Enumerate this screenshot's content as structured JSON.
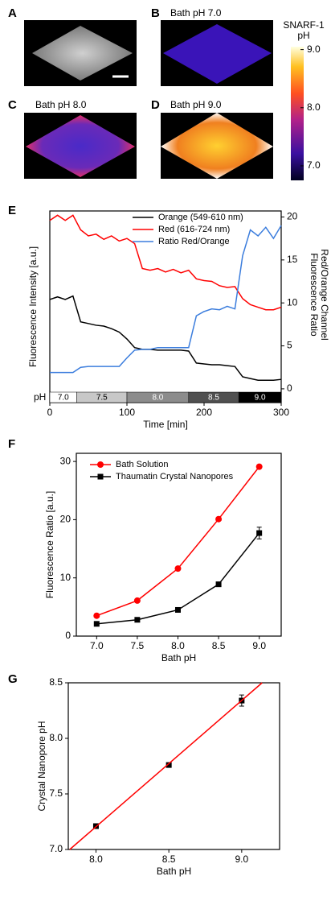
{
  "panel_labels": [
    "A",
    "B",
    "C",
    "D",
    "E",
    "F",
    "G"
  ],
  "image_titles": [
    "Bath pH 7.0",
    "Bath pH 8.0",
    "Bath pH 9.0"
  ],
  "colorbar": {
    "title": [
      "SNARF-1",
      "pH"
    ],
    "ylim": [
      6.75,
      9.05
    ],
    "ticks": [
      {
        "value": 7,
        "label": "7.0"
      },
      {
        "value": 8,
        "label": "8.0"
      },
      {
        "value": 9,
        "label": "9.0"
      }
    ]
  },
  "chart_data": [
    {
      "type": "line",
      "xlabel": "Time [min]",
      "ylabel": "Fluorescence Intensity [a.u.]",
      "y2label": [
        "Fluorescence Ratio",
        "Red/Orange Channel"
      ],
      "x": [
        0,
        10,
        20,
        30,
        40,
        50,
        60,
        70,
        80,
        90,
        100,
        110,
        120,
        130,
        140,
        150,
        160,
        170,
        180,
        190,
        200,
        210,
        220,
        230,
        240,
        250,
        260,
        270,
        280,
        290,
        300
      ],
      "xlim": [
        0,
        300
      ],
      "xticks": [
        0,
        100,
        200,
        300
      ],
      "ylim": [
        -1.6,
        20.7
      ],
      "y2lim": [
        -1.6,
        20.7
      ],
      "y2ticks": [
        0,
        5,
        10,
        15,
        20
      ],
      "series": [
        {
          "name": "Orange (549-610 nm)",
          "color": "#000000",
          "values": [
            10.4,
            10.7,
            10.4,
            10.8,
            7.8,
            7.6,
            7.4,
            7.3,
            7.0,
            6.6,
            5.8,
            4.8,
            4.6,
            4.6,
            4.5,
            4.5,
            4.5,
            4.5,
            4.4,
            3.0,
            2.9,
            2.8,
            2.8,
            2.7,
            2.6,
            1.4,
            1.2,
            1.0,
            1.0,
            1.0,
            1.1
          ]
        },
        {
          "name": "Red (616-724 nm)",
          "color": "#ff0000",
          "values": [
            19.6,
            20.2,
            19.6,
            20.2,
            18.5,
            17.8,
            18.0,
            17.4,
            17.8,
            17.2,
            17.5,
            16.9,
            14.0,
            13.8,
            14.0,
            13.6,
            13.9,
            13.5,
            13.8,
            12.8,
            12.6,
            12.5,
            12.0,
            11.8,
            11.9,
            10.5,
            9.8,
            9.5,
            9.2,
            9.2,
            9.5
          ]
        },
        {
          "name": "Ratio Red/Orange",
          "color": "#3b7ddd",
          "axis": "y2",
          "values": [
            1.9,
            1.9,
            1.9,
            1.9,
            2.5,
            2.6,
            2.6,
            2.6,
            2.6,
            2.6,
            3.6,
            4.5,
            4.6,
            4.6,
            4.8,
            4.8,
            4.8,
            4.8,
            4.8,
            8.5,
            9.0,
            9.3,
            9.2,
            9.6,
            9.3,
            15.5,
            18.5,
            17.8,
            18.8,
            17.5,
            19.0
          ]
        }
      ],
      "ph_bar": {
        "label": "pH",
        "bounds": [
          0,
          35,
          100,
          180,
          245,
          300
        ],
        "labels": [
          "7.0",
          "7.5",
          "8.0",
          "8.5",
          "9.0"
        ],
        "colors": [
          "#ffffff",
          "#c8c8c8",
          "#8c8c8c",
          "#505050",
          "#000000"
        ]
      }
    },
    {
      "type": "line",
      "xlabel": "Bath pH",
      "ylabel": "Fluorescence Ratio [a.u.]",
      "x": [
        7.0,
        7.5,
        8.0,
        8.5,
        9.0
      ],
      "xlim": [
        6.75,
        9.27
      ],
      "xticks": [
        {
          "value": 7,
          "label": "7.0"
        },
        {
          "value": 7.5,
          "label": "7.5"
        },
        {
          "value": 8,
          "label": "8.0"
        },
        {
          "value": 8.5,
          "label": "8.5"
        },
        {
          "value": 9,
          "label": "9.0"
        }
      ],
      "ylim": [
        0,
        31.4
      ],
      "yticks": [
        0,
        10,
        20,
        30
      ],
      "series": [
        {
          "name": "Bath Solution",
          "color": "#ff0000",
          "marker": "circle",
          "values": [
            3.5,
            6.1,
            11.6,
            20.1,
            29.1
          ]
        },
        {
          "name": "Thaumatin Crystal Nanopores",
          "color": "#000000",
          "marker": "square",
          "values": [
            2.1,
            2.8,
            4.5,
            8.9,
            17.7
          ],
          "errors": [
            0.2,
            0.2,
            0.2,
            0.3,
            1.0
          ]
        }
      ]
    },
    {
      "type": "scatter",
      "xlabel": "Bath pH",
      "ylabel": "Crystal Nanopore pH",
      "x": [
        8.0,
        8.5,
        9.0
      ],
      "xlim": [
        7.81,
        9.26
      ],
      "xticks": [
        {
          "value": 8,
          "label": "8.0"
        },
        {
          "value": 8.5,
          "label": "8.5"
        },
        {
          "value": 9,
          "label": "9.0"
        }
      ],
      "ylim": [
        7.0,
        8.5
      ],
      "yticks": [
        {
          "value": 7,
          "label": "7.0"
        },
        {
          "value": 7.5,
          "label": "7.5"
        },
        {
          "value": 8,
          "label": "8.0"
        },
        {
          "value": 8.5,
          "label": "8.5"
        }
      ],
      "series": [
        {
          "color": "#000000",
          "values": [
            7.21,
            7.76,
            8.34
          ],
          "errors": [
            0.02,
            0.02,
            0.05
          ]
        }
      ],
      "fit": {
        "color": "#ff0000",
        "x": [
          7.82,
          9.14
        ],
        "values": [
          7.0,
          8.5
        ]
      }
    }
  ]
}
